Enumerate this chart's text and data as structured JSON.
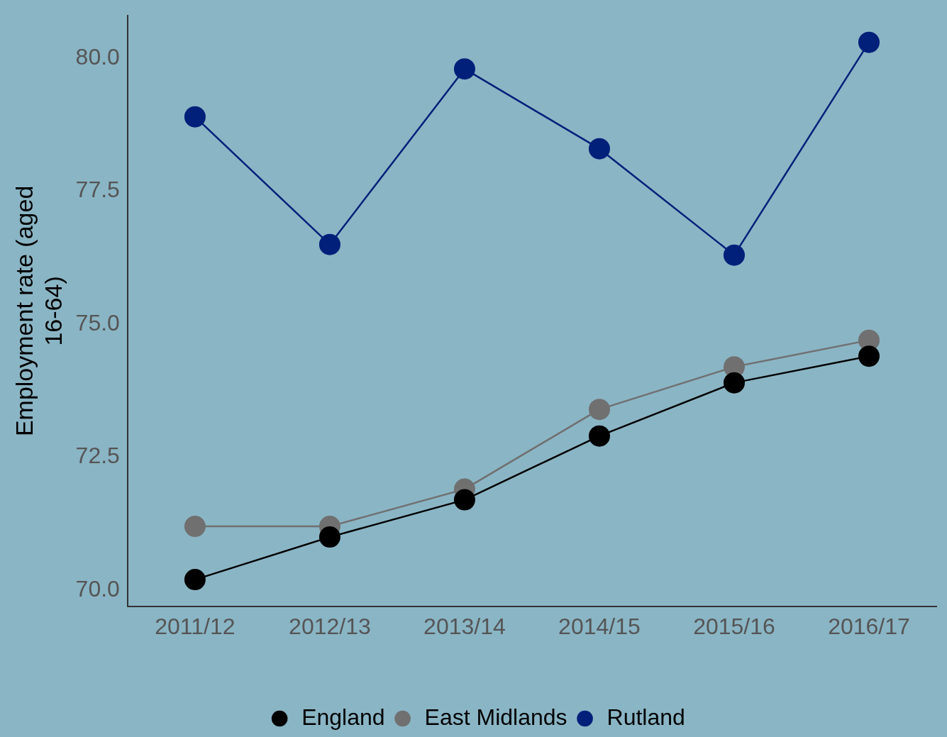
{
  "chart_data": {
    "type": "line",
    "ylabel": "Employment rate (aged 16-64)",
    "categories": [
      "2011/12",
      "2012/13",
      "2013/14",
      "2014/15",
      "2015/16",
      "2016/17"
    ],
    "series": [
      {
        "name": "England",
        "color": "#000000",
        "values": [
          70.2,
          71.0,
          71.7,
          72.9,
          73.9,
          74.4
        ]
      },
      {
        "name": "East Midlands",
        "color": "#707070",
        "values": [
          71.2,
          71.2,
          71.9,
          73.4,
          74.2,
          74.7
        ]
      },
      {
        "name": "Rutland",
        "color": "#00207a",
        "values": [
          78.9,
          76.5,
          79.8,
          78.3,
          76.3,
          80.3
        ]
      }
    ],
    "ylim": [
      69.7,
      80.8
    ],
    "yticks": [
      {
        "value": 70,
        "label": "70.0"
      },
      {
        "value": 72.5,
        "label": "72.5"
      },
      {
        "value": 75,
        "label": "75.0"
      },
      {
        "value": 77.5,
        "label": "77.5"
      },
      {
        "value": 80,
        "label": "80.0"
      }
    ],
    "grid": false,
    "legend": "bottom",
    "marker": "circle",
    "line_style": "solid"
  }
}
